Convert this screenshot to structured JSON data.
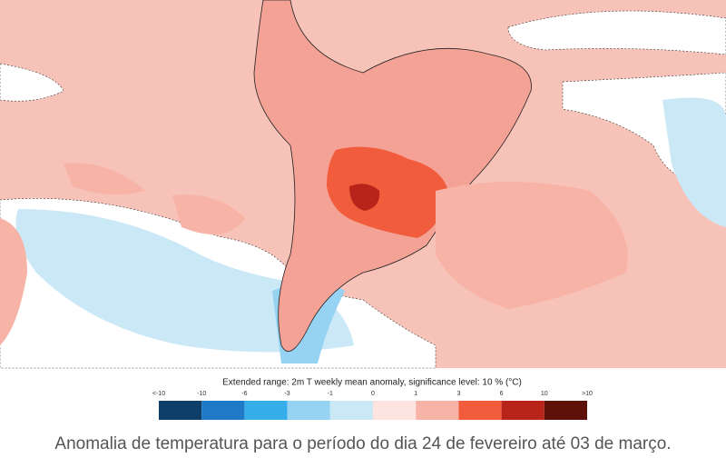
{
  "map": {
    "colorbar": {
      "title": "Extended range: 2m T weekly mean anomaly, significance level: 10 % (°C)",
      "labels": [
        "<-10",
        "-10",
        "-6",
        "-3",
        "-1",
        "0",
        "1",
        "3",
        "6",
        "10",
        ">10"
      ],
      "colors": [
        "#0d3f6a",
        "#1f79c6",
        "#36aeea",
        "#96d2f1",
        "#cbe8f7",
        "#fde4e0",
        "#f8b3a7",
        "#f15d3c",
        "#b8231a",
        "#5e1109"
      ]
    },
    "caption": "Anomalia de temperatura para o período do dia 24 de fevereiro até 03 de março."
  }
}
